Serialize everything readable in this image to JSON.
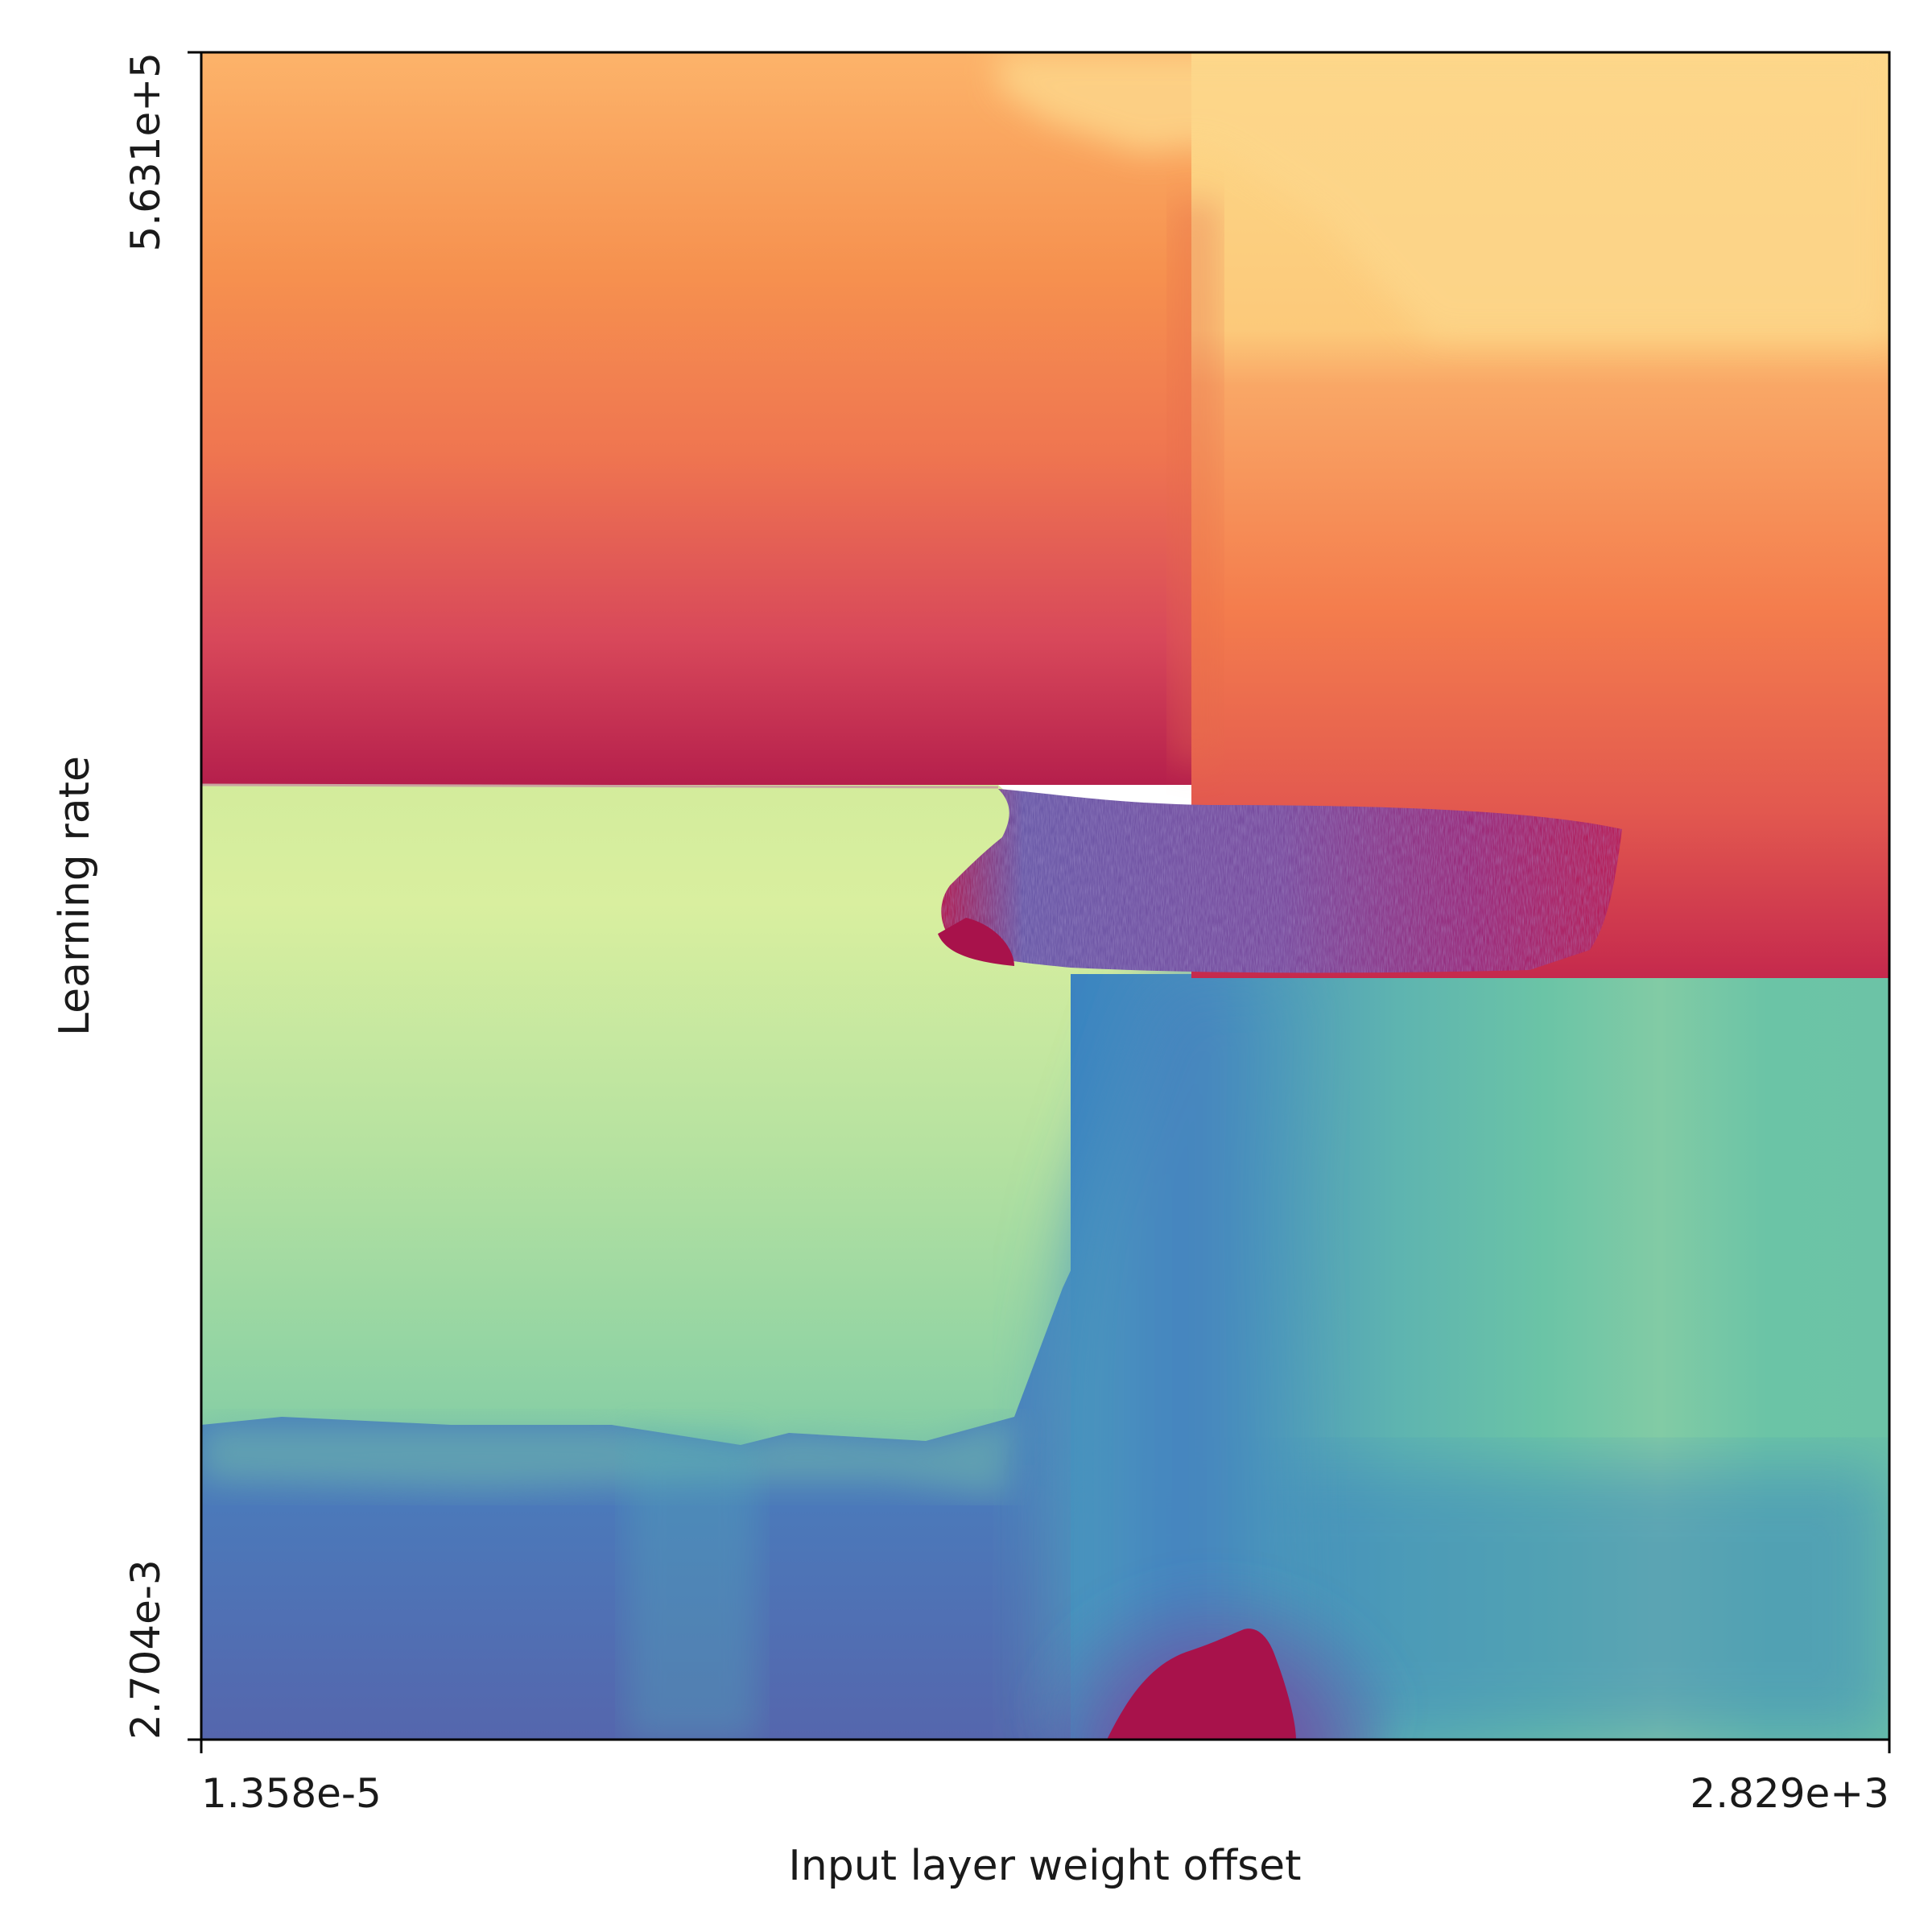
{
  "chart_data": {
    "type": "heatmap",
    "title": "",
    "xlabel": "Input layer weight offset",
    "ylabel": "Learning rate",
    "x_ticks": [
      "1.358e-5",
      "2.829e+3"
    ],
    "y_ticks": [
      "2.704e-3",
      "5.631e+5"
    ],
    "xlim": [
      1.358e-05,
      2829
    ],
    "ylim": [
      0.002704,
      563100
    ],
    "colormap": "Spectral",
    "grid": false,
    "legend": "none",
    "colors": {
      "dark_red": "#a8124b",
      "red": "#c62d4e",
      "orange_red": "#e8604a",
      "orange": "#f6914f",
      "light_orange": "#fcc97a",
      "pale_yellow": "#fdd989",
      "yellow_green": "#d9ef9f",
      "light_green": "#a9dea0",
      "green": "#6bc4a6",
      "teal": "#4fa8b4",
      "blue": "#3b8bc0",
      "slate_blue": "#5565ac",
      "purple": "#6a5aa8"
    }
  }
}
